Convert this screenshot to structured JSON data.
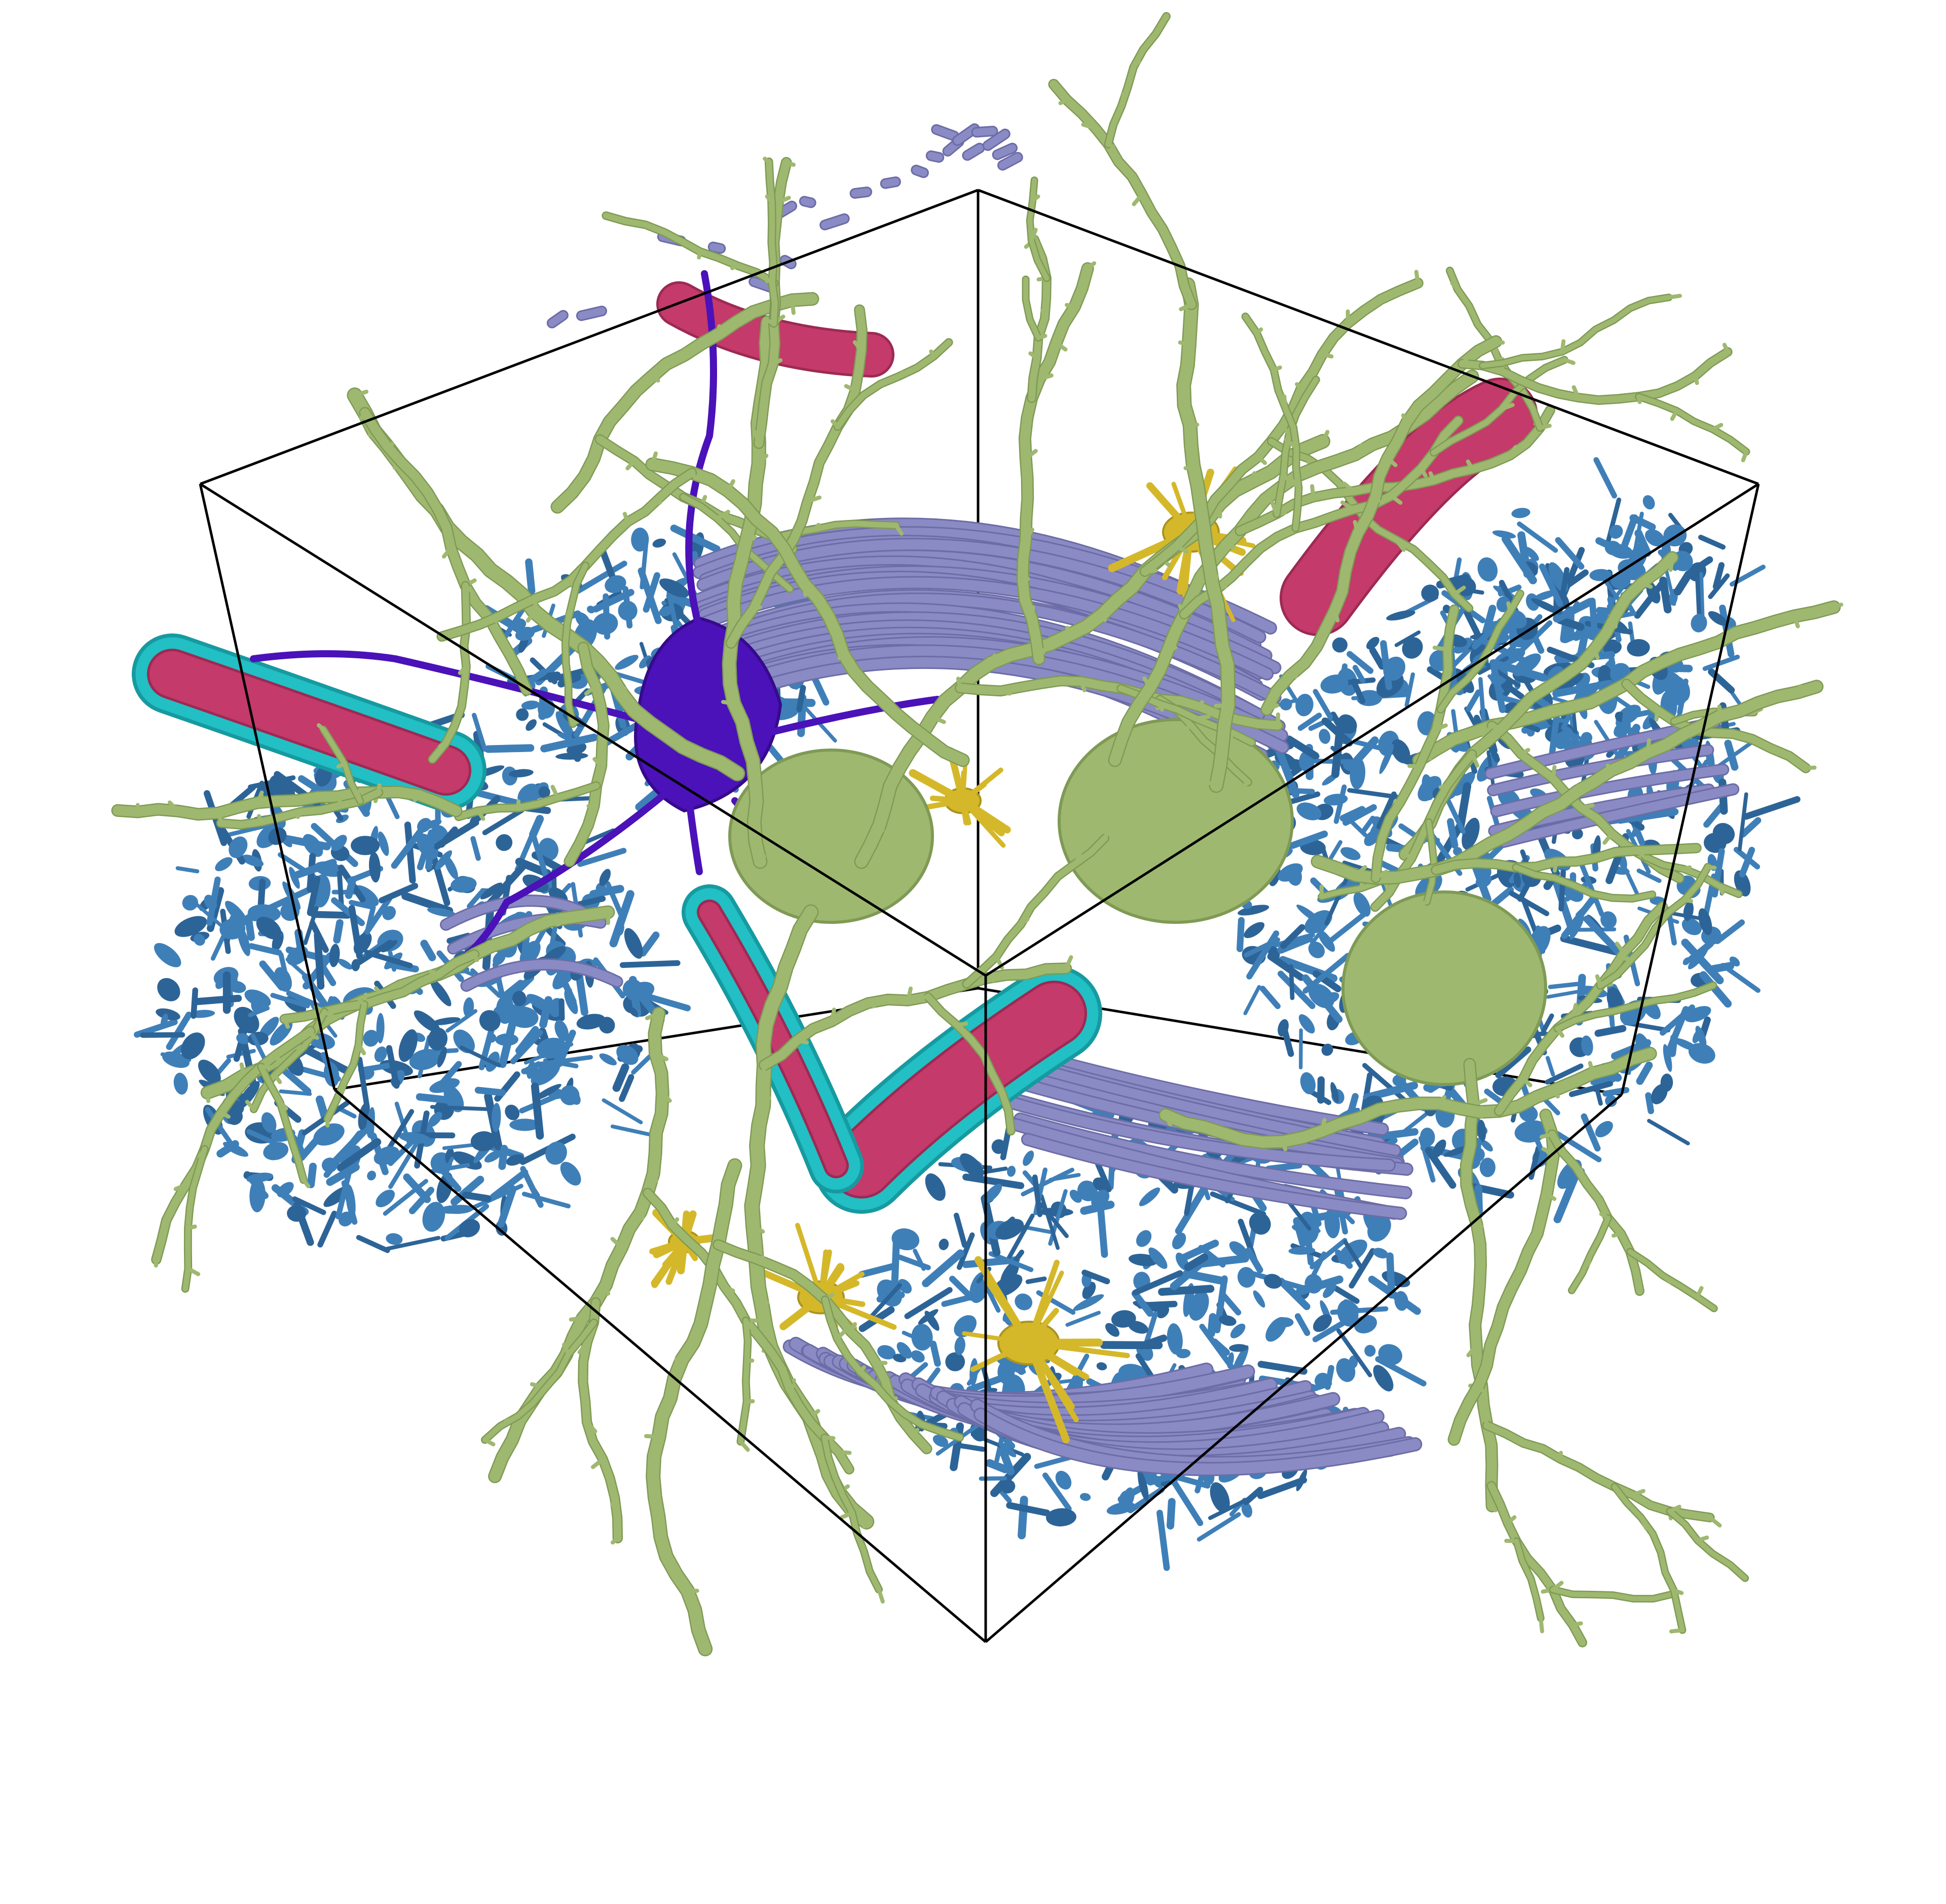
{
  "image": {
    "subject": "3d-render",
    "background_color": "#ffffff",
    "bounding_box_color": "#000000"
  },
  "palette": {
    "dendrite": "#9fb870",
    "dendrite_dark": "#7f9a55",
    "astrocyte": "#3f7fb8",
    "astrocyte_dark": "#2d6497",
    "axon_bundle": "#8a8ac4",
    "axon_bundle_dark": "#6c6ca6",
    "blood_vessel": "#c43a6a",
    "blood_vessel_dark": "#9c2a52",
    "vessel_wall": "#22bfc4",
    "vessel_wall_dark": "#169aa0",
    "neuron": "#4a12b8",
    "neuron_dark": "#360a8c",
    "microglia": "#d4b82a",
    "microglia_dark": "#aa9320"
  }
}
